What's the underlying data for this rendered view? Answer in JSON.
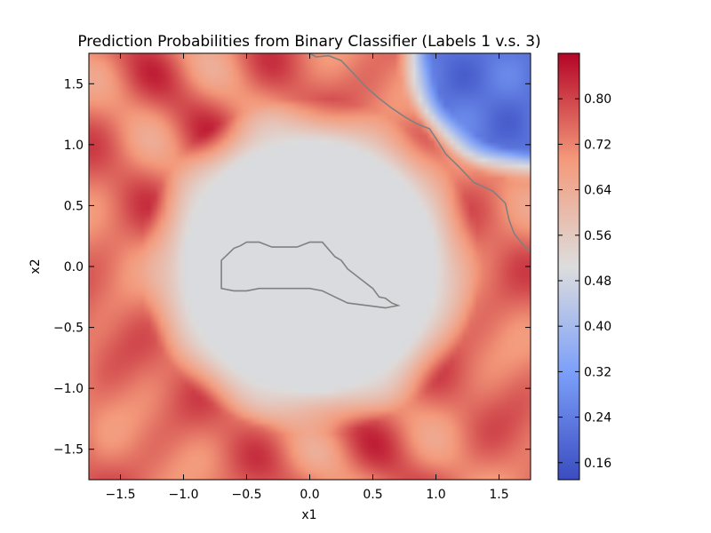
{
  "chart_data": {
    "type": "heatmap",
    "title": "Prediction Probabilities from Binary Classifier (Labels 1 v.s. 3)",
    "xlabel": "x1",
    "ylabel": "x2",
    "xlim": [
      -1.75,
      1.75
    ],
    "ylim": [
      -1.75,
      1.75
    ],
    "x_ticks": [
      -1.5,
      -1.0,
      -0.5,
      0.0,
      0.5,
      1.0,
      1.5
    ],
    "y_ticks": [
      -1.5,
      -1.0,
      -0.5,
      0.0,
      0.5,
      1.0,
      1.5
    ],
    "x_tick_labels": [
      "−1.5",
      "−1.0",
      "−0.5",
      "0.0",
      "0.5",
      "1.0",
      "1.5"
    ],
    "y_tick_labels": [
      "−1.5",
      "−1.0",
      "−0.5",
      "0.0",
      "0.5",
      "1.0",
      "1.5"
    ],
    "colormap": "coolwarm",
    "colorbar": {
      "range": [
        0.13,
        0.88
      ],
      "ticks": [
        0.16,
        0.24,
        0.32,
        0.4,
        0.48,
        0.56,
        0.64,
        0.72,
        0.8
      ],
      "tick_labels": [
        "0.16",
        "0.24",
        "0.32",
        "0.40",
        "0.48",
        "0.56",
        "0.64",
        "0.72",
        "0.80"
      ]
    },
    "grid": false,
    "field": {
      "center_value": 0.5,
      "ring_value": 0.74,
      "low_corner": [
        1.75,
        1.75
      ],
      "low_value": 0.22
    },
    "contours": [
      {
        "level": 0.5,
        "color": "#808080",
        "points": [
          [
            0.0,
            1.75
          ],
          [
            0.05,
            1.72
          ],
          [
            0.15,
            1.73
          ],
          [
            0.25,
            1.69
          ],
          [
            0.35,
            1.58
          ],
          [
            0.45,
            1.47
          ],
          [
            0.55,
            1.38
          ],
          [
            0.65,
            1.3
          ],
          [
            0.75,
            1.23
          ],
          [
            0.85,
            1.17
          ],
          [
            0.95,
            1.13
          ],
          [
            1.02,
            1.02
          ],
          [
            1.08,
            0.92
          ],
          [
            1.18,
            0.82
          ],
          [
            1.3,
            0.69
          ],
          [
            1.45,
            0.62
          ],
          [
            1.55,
            0.52
          ],
          [
            1.58,
            0.38
          ],
          [
            1.62,
            0.27
          ],
          [
            1.69,
            0.18
          ],
          [
            1.75,
            0.12
          ]
        ]
      },
      {
        "level": 0.5,
        "color": "#808080",
        "closed": true,
        "points": [
          [
            -0.7,
            0.05
          ],
          [
            -0.65,
            0.1
          ],
          [
            -0.6,
            0.15
          ],
          [
            -0.55,
            0.17
          ],
          [
            -0.5,
            0.2
          ],
          [
            -0.4,
            0.2
          ],
          [
            -0.3,
            0.16
          ],
          [
            -0.1,
            0.16
          ],
          [
            0.0,
            0.2
          ],
          [
            0.1,
            0.2
          ],
          [
            0.2,
            0.08
          ],
          [
            0.25,
            0.05
          ],
          [
            0.3,
            -0.02
          ],
          [
            0.4,
            -0.1
          ],
          [
            0.5,
            -0.18
          ],
          [
            0.55,
            -0.25
          ],
          [
            0.6,
            -0.26
          ],
          [
            0.65,
            -0.3
          ],
          [
            0.7,
            -0.32
          ],
          [
            0.6,
            -0.34
          ],
          [
            0.3,
            -0.3
          ],
          [
            0.2,
            -0.25
          ],
          [
            0.1,
            -0.2
          ],
          [
            0.0,
            -0.18
          ],
          [
            -0.4,
            -0.18
          ],
          [
            -0.5,
            -0.2
          ],
          [
            -0.6,
            -0.2
          ],
          [
            -0.7,
            -0.18
          ],
          [
            -0.7,
            -0.05
          ]
        ]
      }
    ]
  }
}
